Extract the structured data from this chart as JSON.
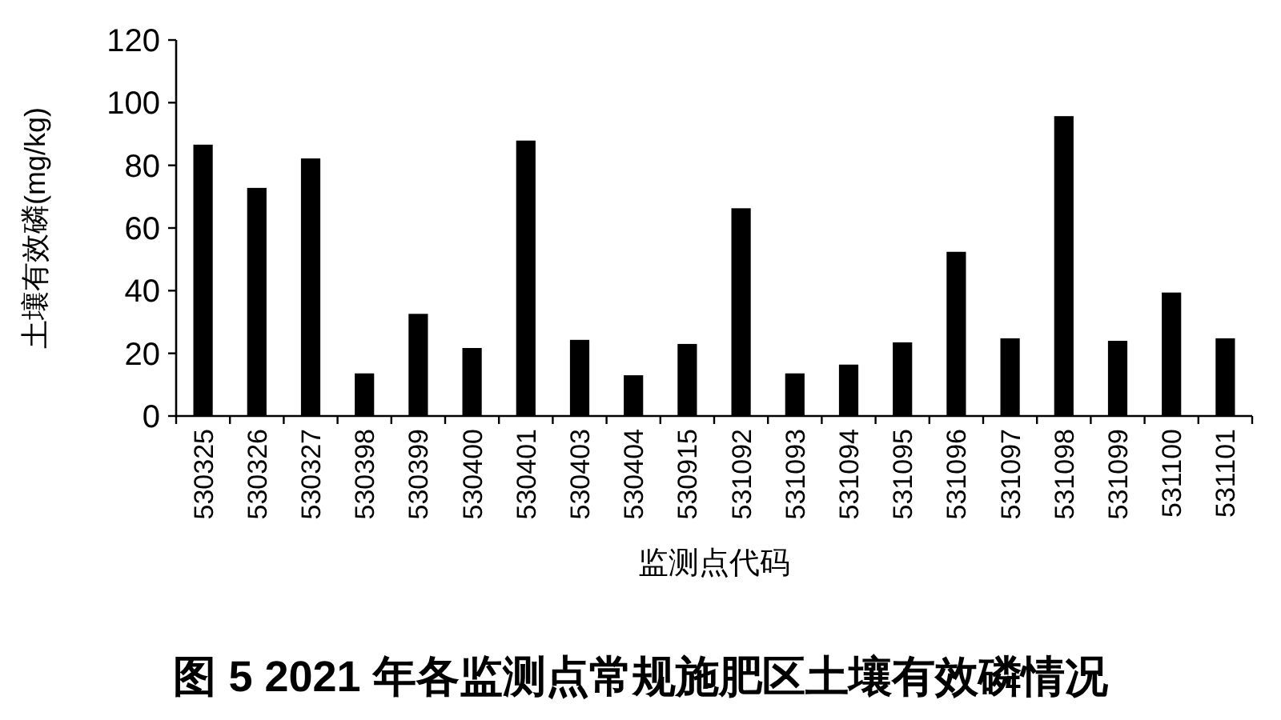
{
  "chart_data": {
    "type": "bar",
    "title": "图 5 2021 年各监测点常规施肥区土壤有效磷情况",
    "xlabel": "监测点代码",
    "ylabel": "土壤有效磷(mg/kg)",
    "categories": [
      "530325",
      "530326",
      "530327",
      "530398",
      "530399",
      "530400",
      "530401",
      "530403",
      "530404",
      "530915",
      "531092",
      "531093",
      "531094",
      "531095",
      "531096",
      "531097",
      "531098",
      "531099",
      "531100",
      "531101"
    ],
    "values": [
      86.6,
      72.8,
      82.2,
      13.6,
      32.6,
      21.7,
      87.9,
      24.3,
      13,
      23,
      66.3,
      13.6,
      16.4,
      23.5,
      52.4,
      24.8,
      95.7,
      24,
      39.4,
      24.8
    ],
    "color": "#000000",
    "ylim": [
      0,
      120
    ],
    "yticks": [
      0,
      20,
      40,
      60,
      80,
      100,
      120
    ]
  }
}
